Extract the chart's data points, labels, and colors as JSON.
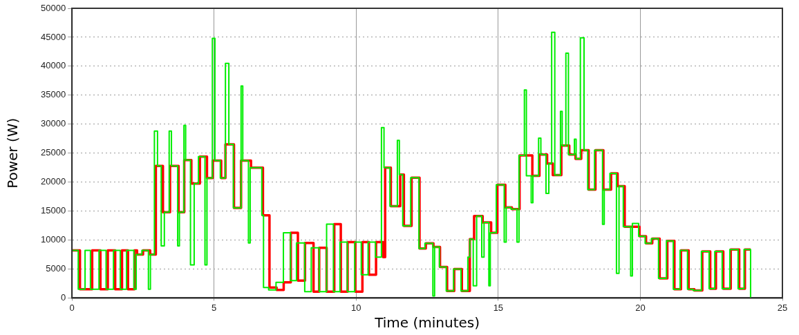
{
  "chart_data": {
    "type": "step",
    "xlabel": "Time (minutes)",
    "ylabel": "Power (W)",
    "xlim": [
      0,
      25
    ],
    "xticks": [
      0,
      5,
      10,
      15,
      20,
      25
    ],
    "ylim": [
      0,
      50000
    ],
    "yticks": [
      0,
      5000,
      10000,
      15000,
      20000,
      25000,
      30000,
      35000,
      40000,
      45000,
      50000
    ],
    "grid": true,
    "legend": false,
    "line_style": "solid",
    "marker": "none",
    "series": [
      {
        "color": "#ff0000",
        "x": [
          0,
          0.28,
          0.71,
          1.0,
          1.26,
          1.52,
          1.76,
          1.97,
          2.2,
          2.29,
          2.5,
          2.75,
          2.95,
          3.2,
          3.45,
          3.75,
          3.95,
          4.2,
          4.5,
          4.75,
          4.95,
          5.25,
          5.4,
          5.7,
          5.95,
          6.3,
          6.72,
          6.95,
          7.2,
          7.45,
          7.7,
          7.95,
          8.2,
          8.5,
          8.7,
          8.96,
          9.23,
          9.46,
          9.7,
          9.97,
          10.22,
          10.45,
          10.7,
          10.95,
          11.02,
          11.22,
          11.55,
          11.68,
          11.95,
          12.23,
          12.45,
          12.72,
          12.95,
          13.2,
          13.45,
          13.72,
          14.0,
          14.15,
          14.45,
          14.75,
          14.97,
          15.25,
          15.48,
          15.75,
          16.2,
          16.45,
          16.72,
          16.92,
          17.22,
          17.5,
          17.72,
          17.92,
          18.18,
          18.42,
          18.7,
          18.97,
          19.2,
          19.45,
          19.97,
          20.2,
          20.42,
          20.68,
          20.95,
          21.2,
          21.43,
          21.7,
          21.9,
          22.18,
          22.46,
          22.66,
          22.92,
          23.18,
          23.48,
          23.68,
          23.88
        ],
        "values": [
          8200,
          1500,
          8200,
          1500,
          8200,
          1500,
          8200,
          1500,
          8200,
          7500,
          8200,
          7500,
          22800,
          14800,
          22800,
          14800,
          23800,
          19750,
          24400,
          20700,
          23700,
          20700,
          26500,
          15550,
          23700,
          22500,
          14250,
          1800,
          1400,
          2700,
          11250,
          3000,
          9500,
          1100,
          8650,
          1100,
          12750,
          1100,
          9650,
          1100,
          9650,
          4000,
          9650,
          7050,
          22500,
          15850,
          21300,
          12450,
          20750,
          8550,
          9450,
          8800,
          5350,
          1200,
          5000,
          1200,
          10150,
          14150,
          13050,
          11250,
          19550,
          15650,
          15350,
          24600,
          21100,
          24750,
          23200,
          21200,
          26300,
          24750,
          24000,
          25500,
          18700,
          25500,
          18700,
          21500,
          19300,
          12300,
          10650,
          9450,
          10250,
          3400,
          9850,
          1500,
          8200,
          1500,
          1300,
          8050,
          1600,
          8050,
          1600,
          8350,
          1600,
          8350,
          8350
        ]
      },
      {
        "color": "#00ee00",
        "x": [
          0,
          0.22,
          0.46,
          0.65,
          0.95,
          1.2,
          1.46,
          1.7,
          1.92,
          2.18,
          2.26,
          2.46,
          2.69,
          2.76,
          2.9,
          3.01,
          3.14,
          3.25,
          3.42,
          3.5,
          3.72,
          3.78,
          3.94,
          4.0,
          4.17,
          4.3,
          4.45,
          4.68,
          4.75,
          4.94,
          5.03,
          5.22,
          5.4,
          5.52,
          5.68,
          5.95,
          6.01,
          6.21,
          6.27,
          6.68,
          6.74,
          6.92,
          7.18,
          7.44,
          7.69,
          7.9,
          8.19,
          8.42,
          8.7,
          8.96,
          9.2,
          9.43,
          9.69,
          9.95,
          10.18,
          10.42,
          10.68,
          10.89,
          10.98,
          11.19,
          11.45,
          11.52,
          11.64,
          11.92,
          12.21,
          12.42,
          12.7,
          12.76,
          12.93,
          13.17,
          13.43,
          13.69,
          13.93,
          14.0,
          14.12,
          14.24,
          14.42,
          14.5,
          14.67,
          14.72,
          14.93,
          15.21,
          15.28,
          15.45,
          15.66,
          15.73,
          15.92,
          15.99,
          16.16,
          16.22,
          16.42,
          16.5,
          16.68,
          16.78,
          16.88,
          16.99,
          17.19,
          17.25,
          17.38,
          17.47,
          17.68,
          17.74,
          17.89,
          18.02,
          18.15,
          18.39,
          18.67,
          18.73,
          18.93,
          19.16,
          19.25,
          19.4,
          19.66,
          19.72,
          19.94,
          20.17,
          20.39,
          20.64,
          20.92,
          21.16,
          21.4,
          21.66,
          21.86,
          22.15,
          22.42,
          22.62,
          22.88,
          23.15,
          23.44,
          23.65,
          23.88
        ],
        "values": [
          8200,
          1500,
          8200,
          1500,
          8200,
          1500,
          8200,
          1500,
          8200,
          1500,
          7500,
          8200,
          1500,
          7500,
          28800,
          22800,
          9000,
          14800,
          28800,
          22800,
          9000,
          14800,
          29800,
          23800,
          5700,
          19750,
          24400,
          5700,
          20700,
          44800,
          23700,
          20700,
          40500,
          26500,
          15550,
          36600,
          23700,
          9500,
          22500,
          14250,
          1800,
          1400,
          2700,
          11250,
          3000,
          9500,
          1100,
          8650,
          1100,
          12750,
          1100,
          9650,
          1100,
          9650,
          4000,
          9650,
          7050,
          29400,
          22500,
          15850,
          27200,
          21300,
          12450,
          20750,
          8550,
          9450,
          350,
          8800,
          5350,
          1200,
          5000,
          1200,
          7050,
          10150,
          2100,
          14150,
          7050,
          13050,
          2100,
          11250,
          19550,
          9650,
          15650,
          15350,
          9650,
          24600,
          35900,
          21100,
          16450,
          21100,
          27600,
          24750,
          18050,
          23200,
          45850,
          21200,
          32200,
          26300,
          42250,
          24750,
          27400,
          24000,
          44900,
          25500,
          18700,
          25500,
          12700,
          18700,
          21500,
          4250,
          19300,
          12300,
          3800,
          12850,
          10650,
          9450,
          10250,
          3400,
          9850,
          1500,
          8200,
          1500,
          1300,
          8050,
          1600,
          8050,
          1600,
          8350,
          1600,
          8350,
          0
        ]
      }
    ]
  }
}
